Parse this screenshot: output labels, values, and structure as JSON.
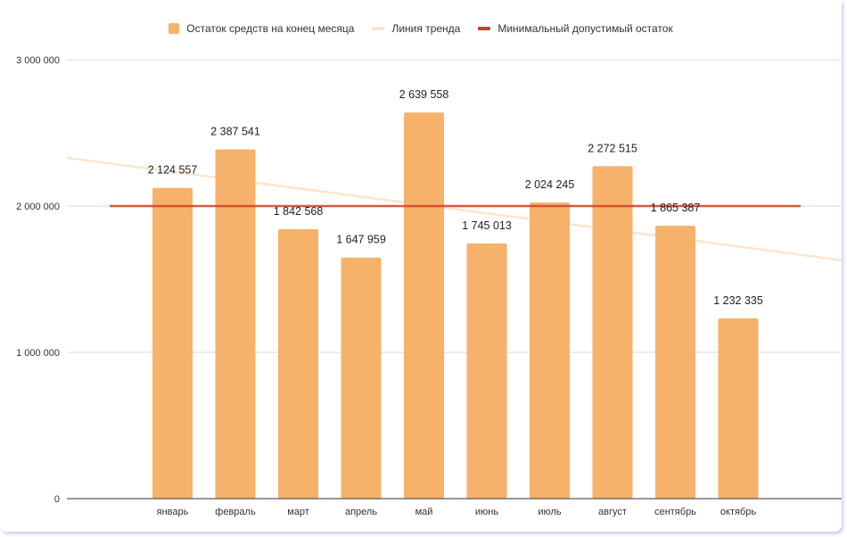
{
  "chart_data": {
    "type": "bar",
    "title": "",
    "xlabel": "",
    "ylabel": "",
    "categories": [
      "январь",
      "февраль",
      "март",
      "апрель",
      "май",
      "июнь",
      "июль",
      "август",
      "сентябрь",
      "октябрь"
    ],
    "series": [
      {
        "name": "Остаток средств на конец месяца",
        "type": "bar",
        "color": "#f6b26b",
        "values": [
          2124557,
          2387541,
          1842568,
          1647959,
          2639558,
          1745013,
          2024245,
          2272515,
          1865387,
          1232335
        ],
        "labels": [
          "2 124 557",
          "2 387 541",
          "1 842 568",
          "1 647 959",
          "2 639 558",
          "1 745 013",
          "2 024 245",
          "2 272 515",
          "1 865 387",
          "1 232 335"
        ]
      },
      {
        "name": "Линия тренда",
        "type": "line",
        "color": "#fce5cd",
        "start_value": 2330000,
        "end_value": 1630000
      },
      {
        "name": "Минимальный допустимый остаток",
        "type": "line",
        "color": "#cc4125",
        "value": 2000000
      }
    ],
    "ylim": [
      0,
      3000000
    ],
    "yticks": [
      0,
      1000000,
      2000000,
      3000000
    ],
    "ytick_labels": [
      "0",
      "1 000 000",
      "2 000 000",
      "3 000 000"
    ],
    "grid": true,
    "legend_position": "top"
  }
}
